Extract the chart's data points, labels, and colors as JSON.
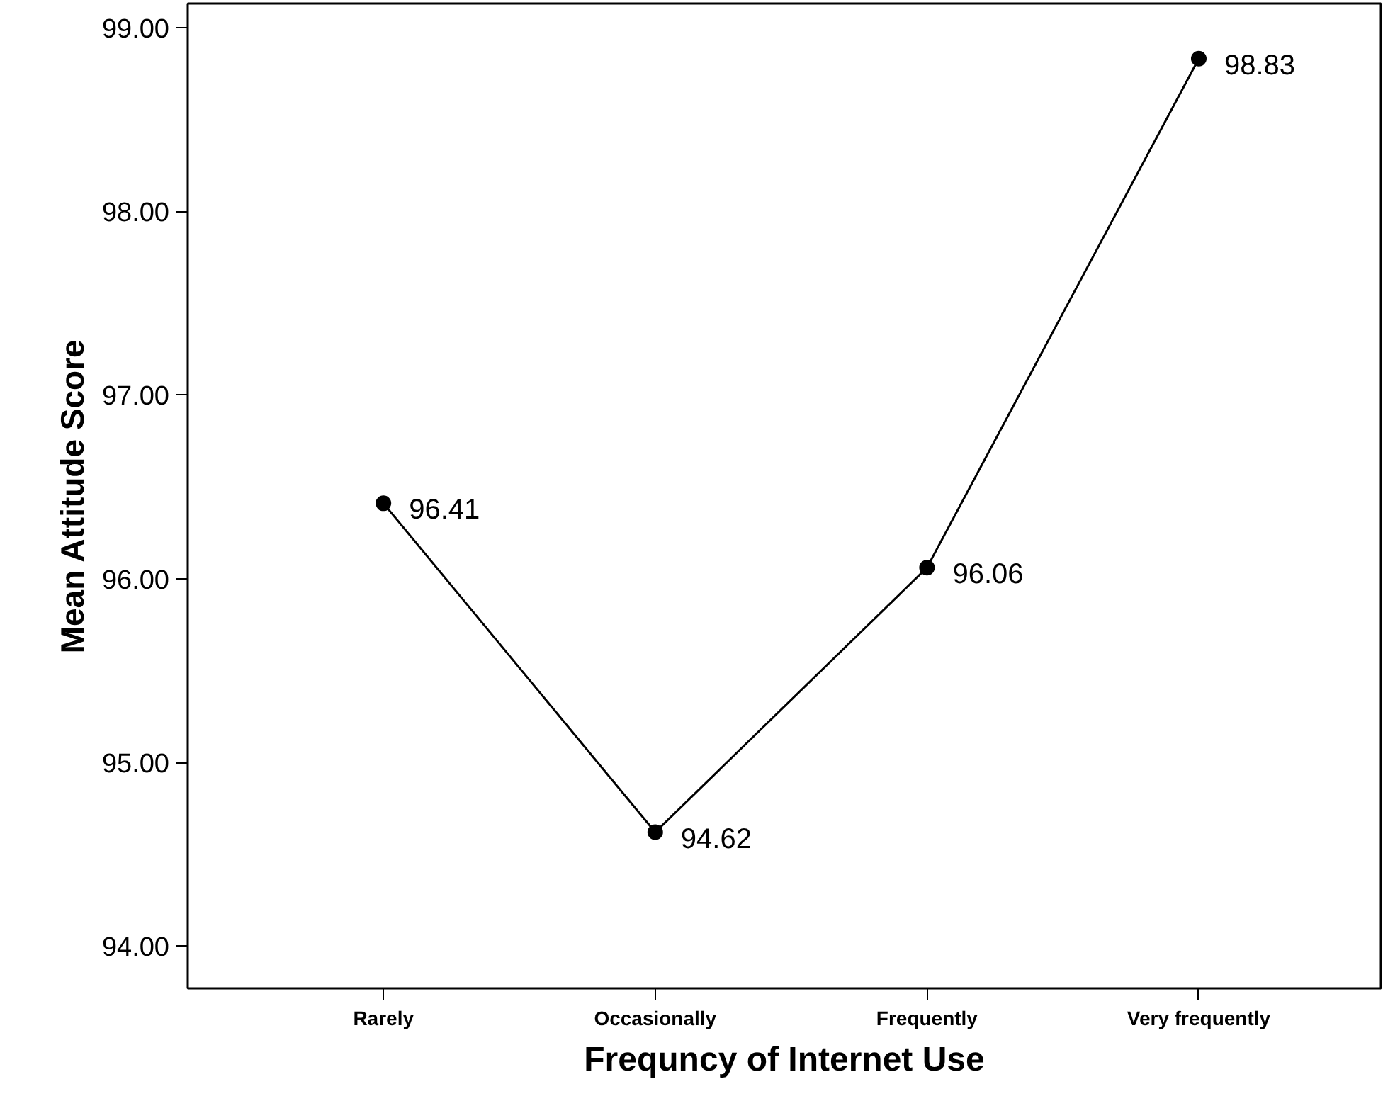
{
  "chart_data": {
    "type": "line",
    "xlabel": "Frequncy of Internet Use",
    "ylabel": "Mean Attitude Score",
    "categories": [
      "Rarely",
      "Occasionally",
      "Frequently",
      "Very frequently"
    ],
    "series": [
      {
        "color": "#000000",
        "values": [
          96.41,
          94.62,
          96.06,
          98.83
        ]
      }
    ],
    "ylim": [
      93.77,
      99.13
    ],
    "yticks": [
      {
        "value": 94,
        "label": "94.00"
      },
      {
        "value": 95,
        "label": "95.00"
      },
      {
        "value": 96,
        "label": "96.00"
      },
      {
        "value": 97,
        "label": "97.00"
      },
      {
        "value": 98,
        "label": "98.00"
      },
      {
        "value": 99,
        "label": "99.00"
      }
    ],
    "data_labels": true,
    "grid": false,
    "marker": "circle",
    "line_style": "solid"
  }
}
